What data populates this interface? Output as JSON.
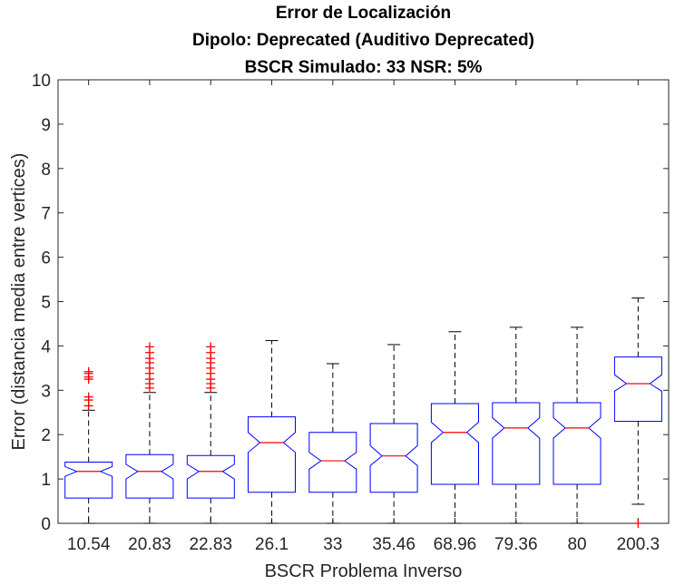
{
  "chart_data": {
    "type": "box",
    "title": [
      "Error de Localización",
      "Dipolo: Deprecated (Auditivo Deprecated)",
      "BSCR Simulado: 33 NSR: 5%"
    ],
    "xlabel": "BSCR Problema Inverso",
    "ylabel": "Error (distancia media entre vertices)",
    "ylim": [
      0,
      10
    ],
    "yticks": [
      "0",
      "1",
      "2",
      "3",
      "4",
      "5",
      "6",
      "7",
      "8",
      "9",
      "10"
    ],
    "notched": true,
    "grid": false,
    "colors": {
      "box": "#0000ff",
      "median": "#ff0000",
      "whisker": "#000000",
      "outlier": "#ff0000",
      "axis": "#262626"
    },
    "categories": [
      "10.54",
      "20.83",
      "22.83",
      "26.1",
      "33",
      "35.46",
      "68.96",
      "79.36",
      "80",
      "200.3"
    ],
    "boxes": [
      {
        "min": 0,
        "q1": 0.57,
        "median": 1.17,
        "q3": 1.38,
        "max": 2.55,
        "notch_lo": 1.06,
        "notch_hi": 1.28,
        "outliers": [
          2.65,
          2.78,
          2.85,
          3.25,
          3.3,
          3.38,
          3.42
        ]
      },
      {
        "min": 0,
        "q1": 0.57,
        "median": 1.17,
        "q3": 1.55,
        "max": 2.95,
        "notch_lo": 1.0,
        "notch_hi": 1.33,
        "outliers": [
          3.05,
          3.15,
          3.25,
          3.38,
          3.5,
          3.62,
          3.72,
          3.85,
          3.98
        ]
      },
      {
        "min": 0,
        "q1": 0.57,
        "median": 1.17,
        "q3": 1.53,
        "max": 2.95,
        "notch_lo": 1.0,
        "notch_hi": 1.33,
        "outliers": [
          3.05,
          3.15,
          3.25,
          3.38,
          3.5,
          3.62,
          3.72,
          3.85,
          3.98
        ]
      },
      {
        "min": 0,
        "q1": 0.7,
        "median": 1.82,
        "q3": 2.4,
        "max": 4.12,
        "notch_lo": 1.6,
        "notch_hi": 2.05,
        "outliers": []
      },
      {
        "min": 0,
        "q1": 0.7,
        "median": 1.41,
        "q3": 2.05,
        "max": 3.6,
        "notch_lo": 1.22,
        "notch_hi": 1.6,
        "outliers": []
      },
      {
        "min": 0,
        "q1": 0.7,
        "median": 1.52,
        "q3": 2.25,
        "max": 4.03,
        "notch_lo": 1.3,
        "notch_hi": 1.75,
        "outliers": []
      },
      {
        "min": 0,
        "q1": 0.88,
        "median": 2.05,
        "q3": 2.7,
        "max": 4.32,
        "notch_lo": 1.82,
        "notch_hi": 2.28,
        "outliers": []
      },
      {
        "min": 0,
        "q1": 0.88,
        "median": 2.15,
        "q3": 2.72,
        "max": 4.42,
        "notch_lo": 1.92,
        "notch_hi": 2.38,
        "outliers": []
      },
      {
        "min": 0,
        "q1": 0.88,
        "median": 2.15,
        "q3": 2.72,
        "max": 4.42,
        "notch_lo": 1.92,
        "notch_hi": 2.38,
        "outliers": []
      },
      {
        "min": 0.43,
        "q1": 2.3,
        "median": 3.15,
        "q3": 3.75,
        "max": 5.08,
        "notch_lo": 2.98,
        "notch_hi": 3.35,
        "outliers": [
          0
        ]
      }
    ]
  }
}
